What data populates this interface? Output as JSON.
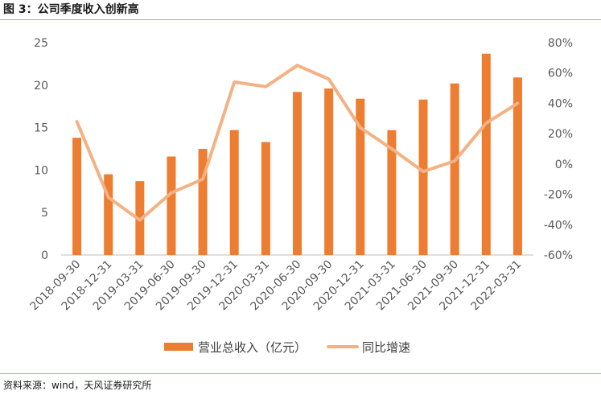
{
  "header": {
    "title": "图 3：公司季度收入创新高"
  },
  "footer": {
    "source": "资料来源：wind，天风证券研究所"
  },
  "colors": {
    "bar": "#ED7D31",
    "line": "#F4B183",
    "axis_text": "#595959",
    "rule": "#C9A86C"
  },
  "chart_data": {
    "type": "bar",
    "title": "",
    "categories": [
      "2018-09-30",
      "2018-12-31",
      "2019-03-31",
      "2019-06-30",
      "2019-09-30",
      "2019-12-31",
      "2020-03-31",
      "2020-06-30",
      "2020-09-30",
      "2020-12-31",
      "2021-03-31",
      "2021-06-30",
      "2021-09-30",
      "2021-12-31",
      "2022-03-31"
    ],
    "series": [
      {
        "name": "营业总收入（亿元）",
        "type": "bar",
        "axis": "left",
        "values": [
          13.8,
          9.5,
          8.7,
          11.6,
          12.5,
          14.7,
          13.3,
          19.2,
          19.6,
          18.4,
          14.7,
          18.3,
          20.2,
          23.7,
          20.9
        ]
      },
      {
        "name": "同比增速",
        "type": "line",
        "axis": "right",
        "values": [
          28,
          -22,
          -37,
          -19,
          -10,
          54,
          51,
          65,
          56,
          24,
          10,
          -5,
          2,
          27,
          40
        ]
      }
    ],
    "y_left": {
      "ylim": [
        0,
        25
      ],
      "ticks": [
        "0",
        "5",
        "10",
        "15",
        "20",
        "25"
      ]
    },
    "y_right": {
      "ylim": [
        -60,
        80
      ],
      "ticks": [
        "-60%",
        "-40%",
        "-20%",
        "0%",
        "20%",
        "40%",
        "60%",
        "80%"
      ]
    },
    "grid": false,
    "legend": "bottom"
  }
}
